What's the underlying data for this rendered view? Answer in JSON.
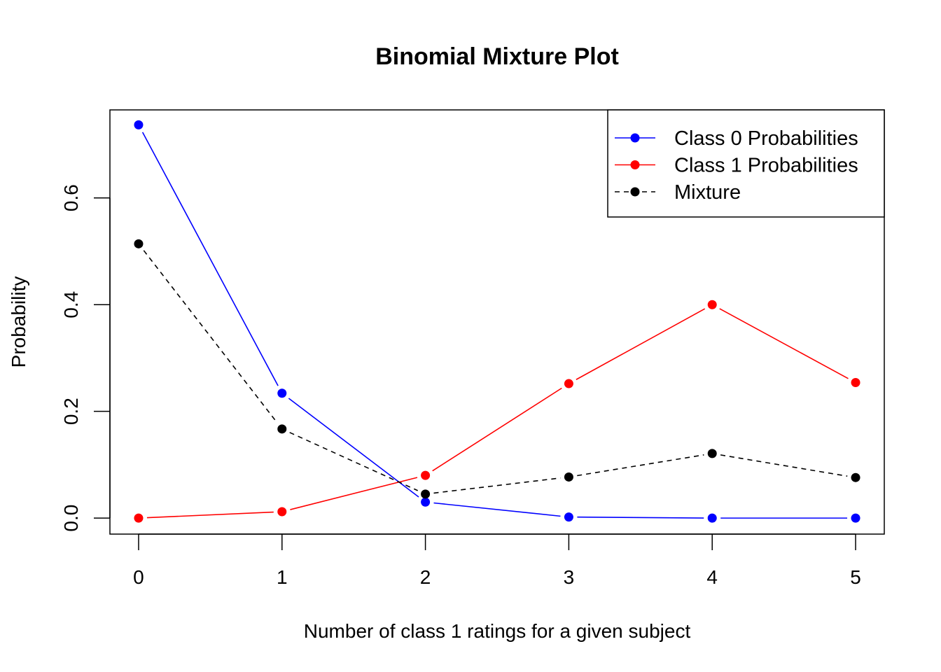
{
  "chart_data": {
    "type": "line",
    "title": "Binomial Mixture Plot",
    "xlabel": "Number of class 1 ratings for a given subject",
    "ylabel": "Probability",
    "x": [
      0,
      1,
      2,
      3,
      4,
      5
    ],
    "x_ticks": [
      "0",
      "1",
      "2",
      "3",
      "4",
      "5"
    ],
    "y_ticks": [
      "0.0",
      "0.2",
      "0.4",
      "0.6"
    ],
    "xlim": [
      -0.2,
      5.2
    ],
    "ylim": [
      -0.03,
      0.765
    ],
    "grid": false,
    "legend_position": "top-right",
    "series": [
      {
        "name": "Class 0 Probabilities",
        "color": "#0000FF",
        "line": "solid",
        "values": [
          0.737,
          0.234,
          0.03,
          0.002,
          0.0,
          0.0
        ]
      },
      {
        "name": "Class 1 Probabilities",
        "color": "#FF0000",
        "line": "solid",
        "values": [
          0.0,
          0.012,
          0.08,
          0.252,
          0.4,
          0.254
        ]
      },
      {
        "name": "Mixture",
        "color": "#000000",
        "line": "dashed",
        "values": [
          0.514,
          0.167,
          0.045,
          0.077,
          0.121,
          0.076
        ]
      }
    ]
  }
}
